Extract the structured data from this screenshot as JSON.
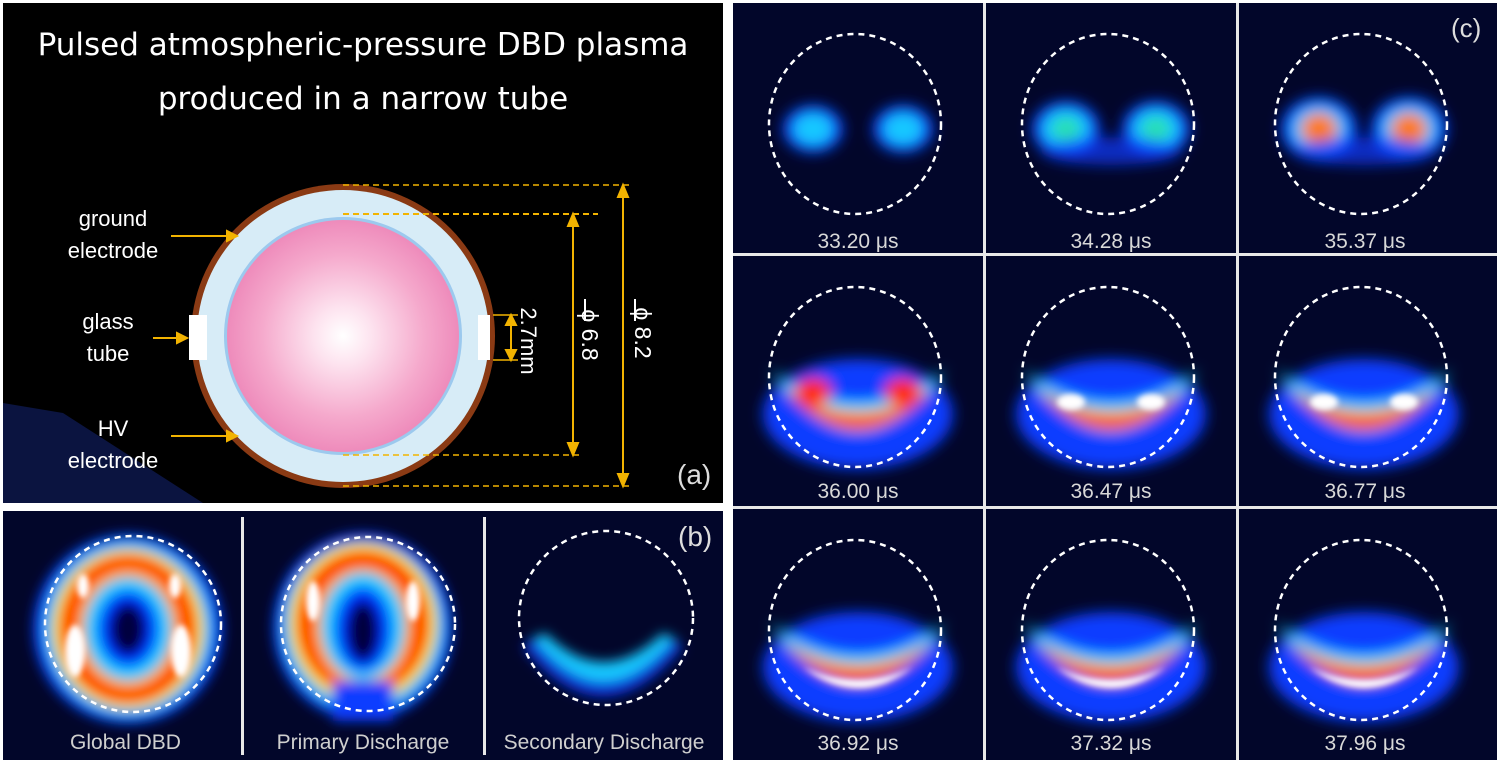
{
  "panel_a": {
    "title_line1": "Pulsed atmospheric-pressure DBD plasma",
    "title_line2": "produced in a narrow tube",
    "label_ground": [
      "ground",
      "electrode"
    ],
    "label_glass": [
      "glass",
      "tube"
    ],
    "label_hv": [
      "HV",
      "electrode"
    ],
    "dim_gap": "2.7mm",
    "dim_inner": "ϕ 6.8",
    "dim_outer": "ϕ 8.2",
    "letter": "(a)",
    "colors": {
      "electrode": "#8a3a14",
      "glass": "#d7ecf7",
      "plasma": "#f08fc0",
      "arrow": "#f2b300"
    }
  },
  "panel_b": {
    "letter": "(b)",
    "captions": [
      "Global DBD",
      "Primary Discharge",
      "Secondary Discharge"
    ]
  },
  "panel_c": {
    "letter": "(c)",
    "timestamps": [
      "33.20 μs",
      "34.28 μs",
      "35.37 μs",
      "36.00 μs",
      "36.47 μs",
      "36.77 μs",
      "36.92 μs",
      "37.32 μs",
      "37.96 μs"
    ]
  }
}
